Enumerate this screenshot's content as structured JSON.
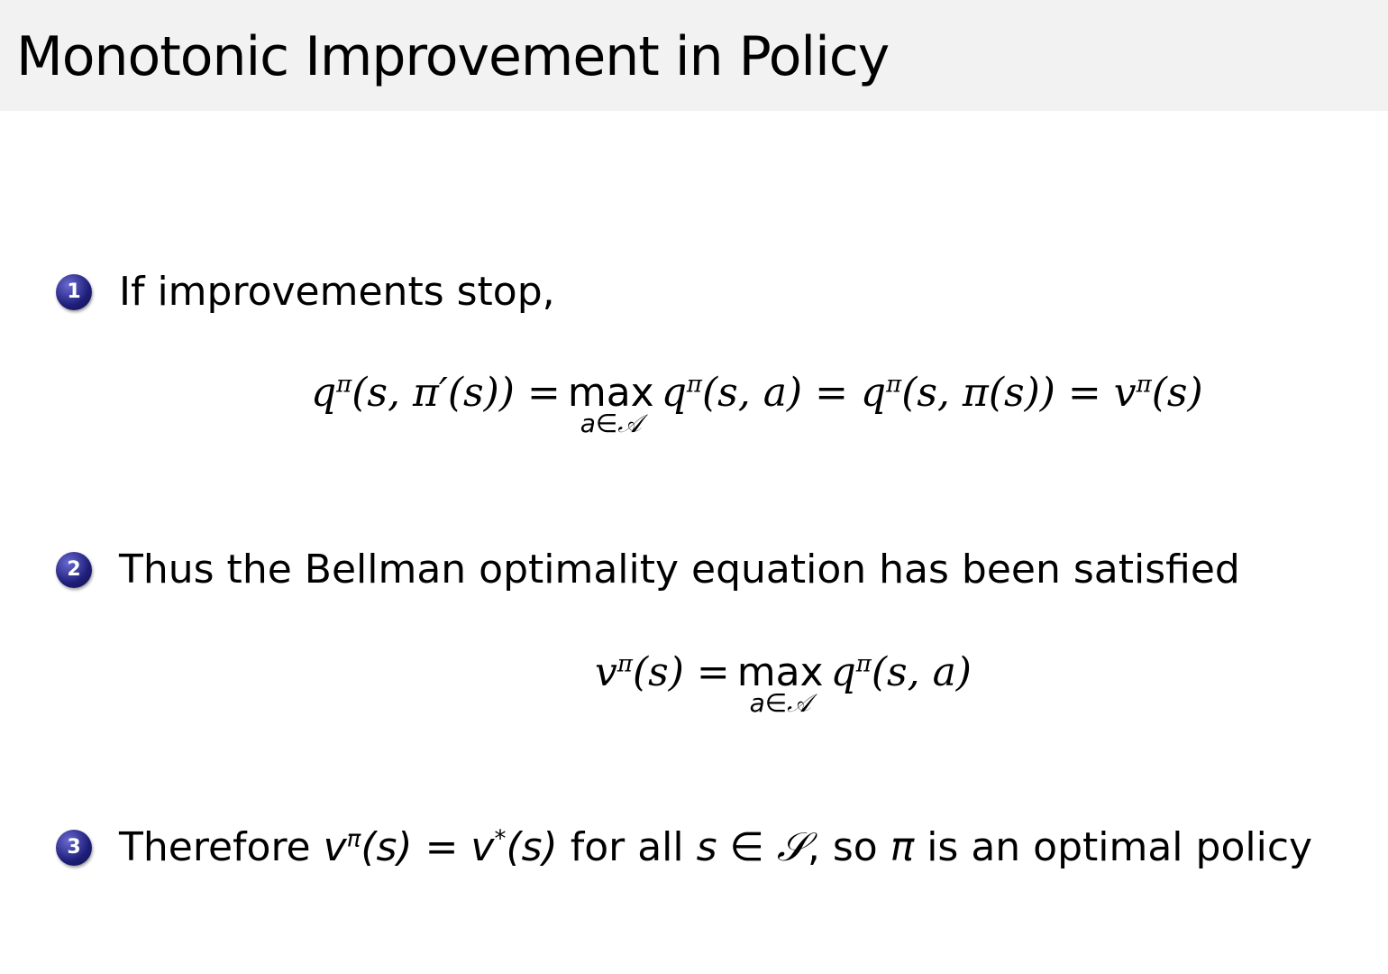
{
  "title": "Monotonic Improvement in Policy",
  "bullet_color": "#2a2a8a",
  "items": [
    {
      "num": "1",
      "text": "If improvements stop,"
    },
    {
      "num": "2",
      "text": "Thus the Bellman optimality equation has been satisfied"
    },
    {
      "num": "3",
      "text_a": "Therefore ",
      "math_a": "v^π(s) = v*(s)",
      "text_b": " for all ",
      "math_b": "s ∈ 𝒮",
      "text_c": ", so ",
      "math_c": "π",
      "text_d": " is an optimal policy"
    }
  ],
  "eq1": {
    "lhs": "q^π(s, π′(s)) =",
    "max": "max",
    "under": "a∈𝒜",
    "rhs": "q^π(s, a) = q^π(s, π(s)) = v^π(s)"
  },
  "eq2": {
    "lhs": "v^π(s) =",
    "max": "max",
    "under": "a∈𝒜",
    "rhs": "q^π(s, a)"
  }
}
